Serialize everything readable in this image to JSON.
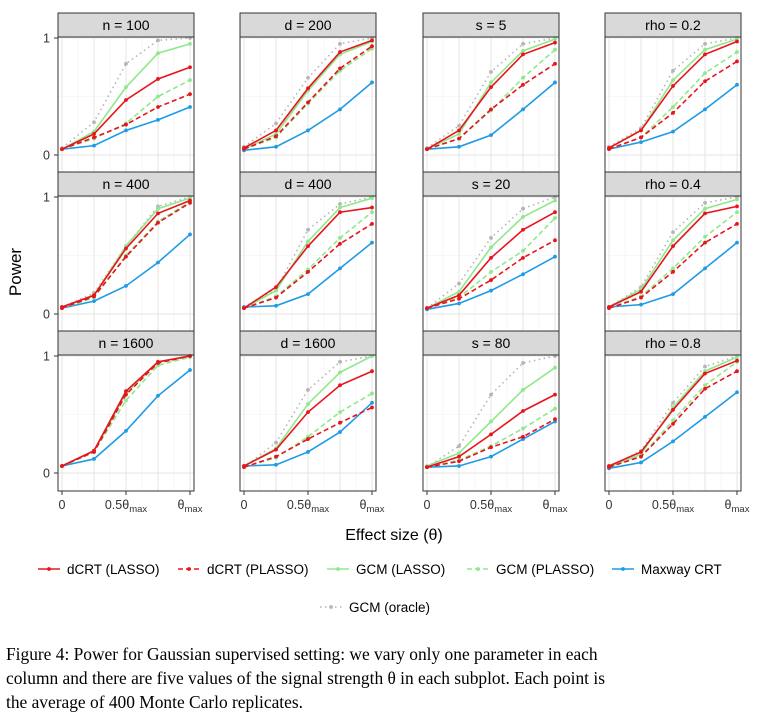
{
  "chart_data": {
    "type": "line",
    "layout": "facet grid, 3 rows x 4 columns",
    "xlabel": "Effect size (θ)",
    "ylabel": "Power",
    "ylim": [
      0,
      1
    ],
    "x": [
      0,
      0.25,
      0.5,
      0.75,
      1
    ],
    "x_tick_labels": [
      {
        "value": 0,
        "main": "0",
        "sub": ""
      },
      {
        "value": 0.5,
        "main": "0.5θ",
        "sub": "max"
      },
      {
        "value": 1,
        "main": "θ",
        "sub": "max"
      }
    ],
    "y_ticks": [
      0,
      1
    ],
    "grid": true,
    "legend_position": "bottom",
    "legend": [
      {
        "name": "dCRT (LASSO)",
        "color": "#e8141c",
        "dash": "solid"
      },
      {
        "name": "dCRT (PLASSO)",
        "color": "#e8141c",
        "dash": "dashed"
      },
      {
        "name": "GCM (LASSO)",
        "color": "#8fe88b",
        "dash": "solid"
      },
      {
        "name": "GCM (PLASSO)",
        "color": "#8fe88b",
        "dash": "dashed"
      },
      {
        "name": "Maxway CRT",
        "color": "#1e9be6",
        "dash": "solid"
      },
      {
        "name": "GCM (oracle)",
        "color": "#b5b5b5",
        "dash": "dotted"
      }
    ],
    "panels": [
      {
        "title": "n = 100",
        "series": [
          [
            0.05,
            0.18,
            0.47,
            0.65,
            0.75
          ],
          [
            0.05,
            0.15,
            0.26,
            0.41,
            0.52
          ],
          [
            0.05,
            0.2,
            0.58,
            0.87,
            0.95
          ],
          [
            0.05,
            0.14,
            0.27,
            0.5,
            0.64
          ],
          [
            0.05,
            0.08,
            0.21,
            0.3,
            0.41
          ],
          [
            0.06,
            0.28,
            0.78,
            0.98,
            1.0
          ]
        ]
      },
      {
        "title": "d = 200",
        "series": [
          [
            0.06,
            0.21,
            0.57,
            0.88,
            0.98
          ],
          [
            0.05,
            0.16,
            0.45,
            0.74,
            0.93
          ],
          [
            0.05,
            0.18,
            0.55,
            0.86,
            0.97
          ],
          [
            0.05,
            0.15,
            0.44,
            0.72,
            0.91
          ],
          [
            0.04,
            0.07,
            0.21,
            0.39,
            0.62
          ],
          [
            0.07,
            0.27,
            0.66,
            0.95,
            1.0
          ]
        ]
      },
      {
        "title": "s = 5",
        "series": [
          [
            0.05,
            0.21,
            0.58,
            0.86,
            0.96
          ],
          [
            0.05,
            0.14,
            0.39,
            0.6,
            0.78
          ],
          [
            0.05,
            0.18,
            0.62,
            0.89,
            0.99
          ],
          [
            0.05,
            0.14,
            0.38,
            0.66,
            0.9
          ],
          [
            0.05,
            0.07,
            0.17,
            0.39,
            0.62
          ],
          [
            0.06,
            0.25,
            0.71,
            0.95,
            1.0
          ]
        ]
      },
      {
        "title": "rho = 0.2",
        "series": [
          [
            0.06,
            0.21,
            0.59,
            0.86,
            0.97
          ],
          [
            0.05,
            0.15,
            0.36,
            0.63,
            0.8
          ],
          [
            0.06,
            0.21,
            0.64,
            0.9,
            0.99
          ],
          [
            0.05,
            0.15,
            0.41,
            0.7,
            0.88
          ],
          [
            0.05,
            0.11,
            0.2,
            0.39,
            0.6
          ],
          [
            0.07,
            0.23,
            0.72,
            0.95,
            1.0
          ]
        ]
      },
      {
        "title": "n = 400",
        "series": [
          [
            0.06,
            0.16,
            0.56,
            0.86,
            0.97
          ],
          [
            0.05,
            0.15,
            0.49,
            0.78,
            0.95
          ],
          [
            0.06,
            0.16,
            0.58,
            0.9,
            0.99
          ],
          [
            0.05,
            0.14,
            0.5,
            0.79,
            0.96
          ],
          [
            0.05,
            0.11,
            0.24,
            0.44,
            0.68
          ],
          [
            0.06,
            0.18,
            0.58,
            0.92,
            1.0
          ]
        ]
      },
      {
        "title": "d = 400",
        "series": [
          [
            0.05,
            0.23,
            0.58,
            0.87,
            0.91
          ],
          [
            0.05,
            0.14,
            0.36,
            0.6,
            0.77
          ],
          [
            0.05,
            0.2,
            0.62,
            0.91,
            0.99
          ],
          [
            0.05,
            0.15,
            0.38,
            0.65,
            0.87
          ],
          [
            0.06,
            0.07,
            0.17,
            0.39,
            0.61
          ],
          [
            0.06,
            0.21,
            0.72,
            0.94,
            1.0
          ]
        ]
      },
      {
        "title": "s = 20",
        "series": [
          [
            0.05,
            0.16,
            0.48,
            0.72,
            0.87
          ],
          [
            0.05,
            0.13,
            0.29,
            0.48,
            0.63
          ],
          [
            0.05,
            0.19,
            0.57,
            0.83,
            0.97
          ],
          [
            0.05,
            0.14,
            0.36,
            0.54,
            0.82
          ],
          [
            0.04,
            0.09,
            0.2,
            0.34,
            0.49
          ],
          [
            0.05,
            0.26,
            0.65,
            0.9,
            1.0
          ]
        ]
      },
      {
        "title": "rho = 0.4",
        "series": [
          [
            0.06,
            0.19,
            0.58,
            0.86,
            0.92
          ],
          [
            0.05,
            0.14,
            0.36,
            0.61,
            0.77
          ],
          [
            0.06,
            0.21,
            0.63,
            0.9,
            0.98
          ],
          [
            0.05,
            0.15,
            0.39,
            0.66,
            0.87
          ],
          [
            0.06,
            0.08,
            0.17,
            0.39,
            0.61
          ],
          [
            0.06,
            0.23,
            0.7,
            0.95,
            1.0
          ]
        ]
      },
      {
        "title": "n = 1600",
        "series": [
          [
            0.06,
            0.19,
            0.7,
            0.95,
            1.0
          ],
          [
            0.06,
            0.18,
            0.67,
            0.94,
            1.0
          ],
          [
            0.06,
            0.19,
            0.68,
            0.95,
            1.0
          ],
          [
            0.06,
            0.18,
            0.62,
            0.92,
            0.99
          ],
          [
            0.06,
            0.12,
            0.36,
            0.66,
            0.88
          ],
          [
            0.06,
            0.19,
            0.7,
            0.95,
            1.0
          ]
        ]
      },
      {
        "title": "d = 1600",
        "series": [
          [
            0.06,
            0.2,
            0.52,
            0.75,
            0.87
          ],
          [
            0.05,
            0.14,
            0.29,
            0.43,
            0.56
          ],
          [
            0.06,
            0.21,
            0.59,
            0.86,
            1.0
          ],
          [
            0.05,
            0.13,
            0.31,
            0.52,
            0.68
          ],
          [
            0.06,
            0.07,
            0.18,
            0.35,
            0.6
          ],
          [
            0.05,
            0.26,
            0.71,
            0.95,
            1.0
          ]
        ]
      },
      {
        "title": "s = 80",
        "series": [
          [
            0.05,
            0.14,
            0.33,
            0.53,
            0.67
          ],
          [
            0.05,
            0.1,
            0.22,
            0.31,
            0.46
          ],
          [
            0.06,
            0.17,
            0.44,
            0.71,
            0.9
          ],
          [
            0.05,
            0.11,
            0.23,
            0.38,
            0.55
          ],
          [
            0.05,
            0.06,
            0.14,
            0.29,
            0.44
          ],
          [
            0.05,
            0.23,
            0.67,
            0.94,
            1.0
          ]
        ]
      },
      {
        "title": "rho = 0.8",
        "series": [
          [
            0.06,
            0.18,
            0.54,
            0.85,
            0.96
          ],
          [
            0.05,
            0.14,
            0.42,
            0.72,
            0.87
          ],
          [
            0.05,
            0.16,
            0.56,
            0.87,
            0.99
          ],
          [
            0.06,
            0.14,
            0.45,
            0.75,
            0.95
          ],
          [
            0.04,
            0.09,
            0.27,
            0.48,
            0.69
          ],
          [
            0.05,
            0.19,
            0.6,
            0.91,
            1.0
          ]
        ]
      }
    ]
  },
  "caption": {
    "lines": [
      "Figure 4:  Power for Gaussian supervised setting:  we vary only one parameter in each",
      "column and there are five values of the signal strength θ in each subplot.  Each point is",
      "the average of 400 Monte Carlo replicates."
    ]
  }
}
